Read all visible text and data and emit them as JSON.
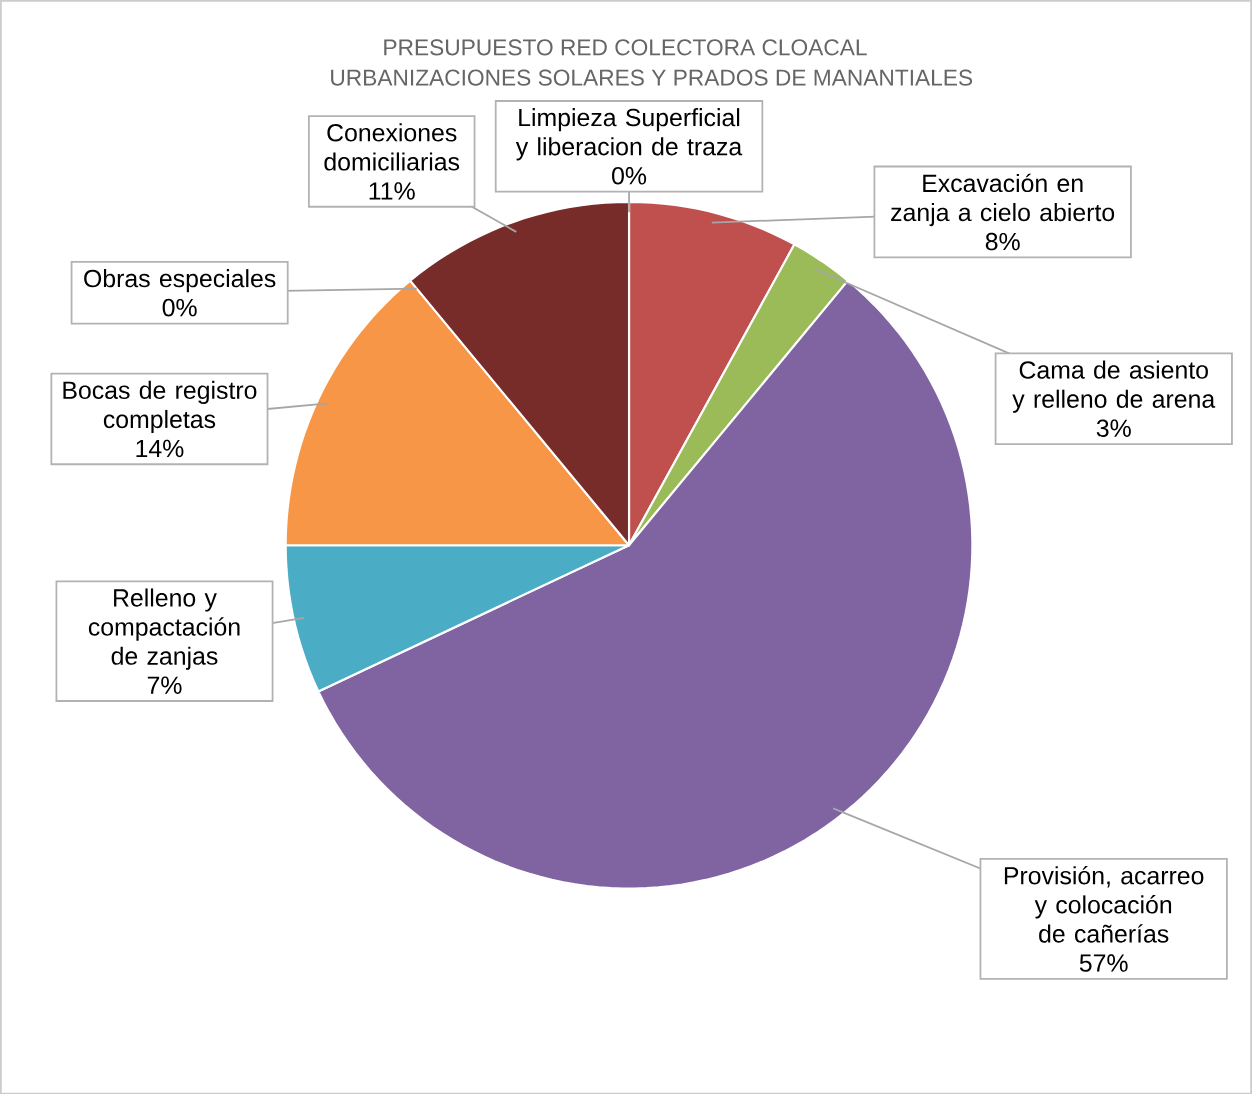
{
  "chart_data": {
    "type": "pie",
    "title": "PRESUPUESTO RED COLECTORA CLOACAL",
    "subtitle": "URBANIZACIONES SOLARES Y PRADOS DE MANANTIALES",
    "categories": [
      "Limpieza Superficial y liberacion de traza",
      "Excavación en zanja a cielo abierto",
      "Cama de asiento y relleno de arena",
      "Provisión, acarreo y colocación de cañerías",
      "Relleno y compactación de zanjas",
      "Bocas de registro completas",
      "Obras especiales",
      "Conexiones domiciliarias"
    ],
    "values": [
      0,
      8,
      3,
      57,
      7,
      14,
      0,
      11
    ],
    "value_labels": [
      "0%",
      "8%",
      "3%",
      "57%",
      "7%",
      "14%",
      "0%",
      "11%"
    ],
    "colors": [
      "#4472c4",
      "#c0504d",
      "#9bbb59",
      "#8064a2",
      "#4bacc6",
      "#f79646",
      "#1f3864",
      "#772c2a"
    ]
  }
}
